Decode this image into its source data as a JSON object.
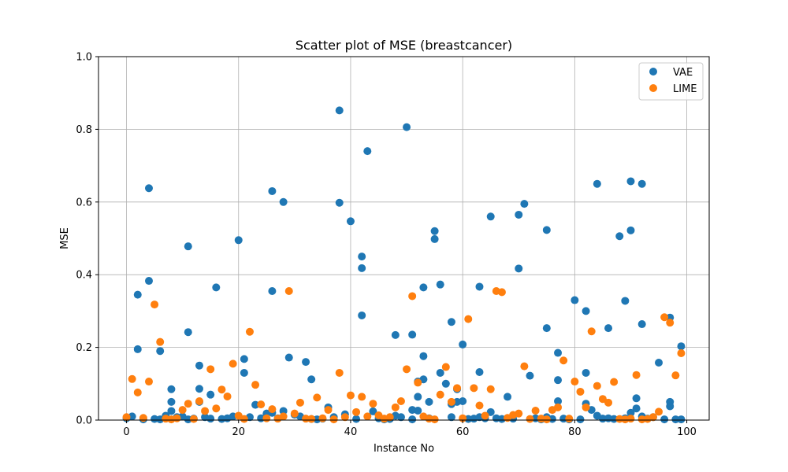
{
  "chart_data": {
    "type": "scatter",
    "title": "Scatter plot of MSE (breastcancer)",
    "xlabel": "Instance No",
    "ylabel": "MSE",
    "xlim": [
      -5,
      104
    ],
    "ylim": [
      0,
      1.0
    ],
    "xticks": [
      0,
      20,
      40,
      60,
      80,
      100
    ],
    "yticks": [
      0.0,
      0.2,
      0.4,
      0.6,
      0.8,
      1.0
    ],
    "xtick_labels": [
      "0",
      "20",
      "40",
      "60",
      "80",
      "100"
    ],
    "ytick_labels": [
      "0.0",
      "0.2",
      "0.4",
      "0.6",
      "0.8",
      "1.0"
    ],
    "grid": true,
    "legend_position": "top-right",
    "series": [
      {
        "name": "VAE",
        "color": "#1f77b4",
        "points": [
          [
            0,
            0.005
          ],
          [
            1,
            0.01
          ],
          [
            2,
            0.195
          ],
          [
            2,
            0.345
          ],
          [
            3,
            0.002
          ],
          [
            4,
            0.383
          ],
          [
            4,
            0.638
          ],
          [
            5,
            0.003
          ],
          [
            6,
            0.19
          ],
          [
            6,
            0.002
          ],
          [
            7,
            0.012
          ],
          [
            8,
            0.085
          ],
          [
            8,
            0.05
          ],
          [
            8,
            0.025
          ],
          [
            9,
            0.008
          ],
          [
            10,
            0.01
          ],
          [
            11,
            0.478
          ],
          [
            11,
            0.242
          ],
          [
            11,
            0.002
          ],
          [
            12,
            0.004
          ],
          [
            13,
            0.15
          ],
          [
            13,
            0.086
          ],
          [
            13,
            0.05
          ],
          [
            14,
            0.008
          ],
          [
            15,
            0.07
          ],
          [
            15,
            0.004
          ],
          [
            16,
            0.365
          ],
          [
            17,
            0.003
          ],
          [
            18,
            0.005
          ],
          [
            19,
            0.01
          ],
          [
            20,
            0.495
          ],
          [
            21,
            0.168
          ],
          [
            21,
            0.13
          ],
          [
            22,
            0.008
          ],
          [
            23,
            0.042
          ],
          [
            24,
            0.005
          ],
          [
            25,
            0.018
          ],
          [
            26,
            0.63
          ],
          [
            26,
            0.355
          ],
          [
            26,
            0.02
          ],
          [
            27,
            0.005
          ],
          [
            28,
            0.6
          ],
          [
            28,
            0.025
          ],
          [
            29,
            0.172
          ],
          [
            30,
            0.015
          ],
          [
            31,
            0.01
          ],
          [
            32,
            0.16
          ],
          [
            33,
            0.112
          ],
          [
            33,
            0.003
          ],
          [
            34,
            0.002
          ],
          [
            35,
            0.004
          ],
          [
            36,
            0.035
          ],
          [
            37,
            0.008
          ],
          [
            38,
            0.852
          ],
          [
            38,
            0.598
          ],
          [
            39,
            0.016
          ],
          [
            40,
            0.547
          ],
          [
            41,
            0.003
          ],
          [
            42,
            0.45
          ],
          [
            42,
            0.418
          ],
          [
            42,
            0.288
          ],
          [
            43,
            0.74
          ],
          [
            44,
            0.024
          ],
          [
            45,
            0.005
          ],
          [
            46,
            0.002
          ],
          [
            47,
            0.003
          ],
          [
            48,
            0.234
          ],
          [
            48,
            0.012
          ],
          [
            49,
            0.008
          ],
          [
            50,
            0.806
          ],
          [
            51,
            0.235
          ],
          [
            51,
            0.028
          ],
          [
            51,
            0.002
          ],
          [
            52,
            0.106
          ],
          [
            52,
            0.064
          ],
          [
            52,
            0.026
          ],
          [
            53,
            0.365
          ],
          [
            53,
            0.176
          ],
          [
            53,
            0.112
          ],
          [
            54,
            0.05
          ],
          [
            54,
            0.005
          ],
          [
            55,
            0.52
          ],
          [
            55,
            0.498
          ],
          [
            56,
            0.373
          ],
          [
            56,
            0.13
          ],
          [
            57,
            0.1
          ],
          [
            58,
            0.27
          ],
          [
            58,
            0.044
          ],
          [
            58,
            0.008
          ],
          [
            59,
            0.085
          ],
          [
            59,
            0.05
          ],
          [
            60,
            0.208
          ],
          [
            60,
            0.052
          ],
          [
            61,
            0.003
          ],
          [
            62,
            0.004
          ],
          [
            63,
            0.367
          ],
          [
            63,
            0.132
          ],
          [
            63,
            0.008
          ],
          [
            64,
            0.005
          ],
          [
            65,
            0.56
          ],
          [
            65,
            0.022
          ],
          [
            66,
            0.005
          ],
          [
            67,
            0.003
          ],
          [
            68,
            0.064
          ],
          [
            69,
            0.004
          ],
          [
            70,
            0.565
          ],
          [
            70,
            0.417
          ],
          [
            71,
            0.595
          ],
          [
            72,
            0.122
          ],
          [
            73,
            0.005
          ],
          [
            74,
            0.002
          ],
          [
            75,
            0.523
          ],
          [
            75,
            0.253
          ],
          [
            75,
            0.008
          ],
          [
            76,
            0.003
          ],
          [
            77,
            0.185
          ],
          [
            77,
            0.11
          ],
          [
            77,
            0.052
          ],
          [
            78,
            0.004
          ],
          [
            79,
            0.002
          ],
          [
            80,
            0.33
          ],
          [
            81,
            0.002
          ],
          [
            82,
            0.3
          ],
          [
            82,
            0.13
          ],
          [
            82,
            0.045
          ],
          [
            83,
            0.028
          ],
          [
            84,
            0.65
          ],
          [
            84,
            0.012
          ],
          [
            85,
            0.004
          ],
          [
            86,
            0.253
          ],
          [
            86,
            0.005
          ],
          [
            87,
            0.003
          ],
          [
            88,
            0.506
          ],
          [
            89,
            0.328
          ],
          [
            89,
            0.005
          ],
          [
            90,
            0.657
          ],
          [
            90,
            0.522
          ],
          [
            90,
            0.02
          ],
          [
            91,
            0.06
          ],
          [
            91,
            0.032
          ],
          [
            92,
            0.65
          ],
          [
            92,
            0.264
          ],
          [
            92,
            0.01
          ],
          [
            93,
            0.004
          ],
          [
            94,
            0.008
          ],
          [
            95,
            0.158
          ],
          [
            96,
            0.002
          ],
          [
            97,
            0.282
          ],
          [
            97,
            0.05
          ],
          [
            97,
            0.038
          ],
          [
            98,
            0.002
          ],
          [
            99,
            0.203
          ],
          [
            99,
            0.002
          ]
        ]
      },
      {
        "name": "LIME",
        "color": "#ff7f0e",
        "points": [
          [
            0,
            0.008
          ],
          [
            1,
            0.113
          ],
          [
            2,
            0.076
          ],
          [
            3,
            0.006
          ],
          [
            4,
            0.106
          ],
          [
            5,
            0.318
          ],
          [
            6,
            0.215
          ],
          [
            7,
            0.004
          ],
          [
            8,
            0.002
          ],
          [
            9,
            0.005
          ],
          [
            10,
            0.028
          ],
          [
            11,
            0.045
          ],
          [
            12,
            0.003
          ],
          [
            13,
            0.052
          ],
          [
            14,
            0.025
          ],
          [
            15,
            0.14
          ],
          [
            16,
            0.032
          ],
          [
            17,
            0.084
          ],
          [
            18,
            0.065
          ],
          [
            19,
            0.155
          ],
          [
            20,
            0.012
          ],
          [
            21,
            0.003
          ],
          [
            22,
            0.243
          ],
          [
            23,
            0.097
          ],
          [
            24,
            0.043
          ],
          [
            25,
            0.005
          ],
          [
            26,
            0.03
          ],
          [
            27,
            0.004
          ],
          [
            28,
            0.01
          ],
          [
            29,
            0.355
          ],
          [
            30,
            0.018
          ],
          [
            31,
            0.048
          ],
          [
            32,
            0.004
          ],
          [
            33,
            0.003
          ],
          [
            34,
            0.062
          ],
          [
            35,
            0.005
          ],
          [
            36,
            0.028
          ],
          [
            37,
            0.002
          ],
          [
            38,
            0.13
          ],
          [
            39,
            0.008
          ],
          [
            40,
            0.068
          ],
          [
            41,
            0.022
          ],
          [
            42,
            0.064
          ],
          [
            43,
            0.01
          ],
          [
            44,
            0.045
          ],
          [
            45,
            0.013
          ],
          [
            46,
            0.004
          ],
          [
            47,
            0.008
          ],
          [
            48,
            0.035
          ],
          [
            49,
            0.052
          ],
          [
            50,
            0.14
          ],
          [
            51,
            0.341
          ],
          [
            52,
            0.103
          ],
          [
            53,
            0.01
          ],
          [
            54,
            0.004
          ],
          [
            55,
            0.002
          ],
          [
            56,
            0.07
          ],
          [
            57,
            0.146
          ],
          [
            58,
            0.05
          ],
          [
            59,
            0.088
          ],
          [
            60,
            0.005
          ],
          [
            61,
            0.278
          ],
          [
            62,
            0.088
          ],
          [
            63,
            0.04
          ],
          [
            64,
            0.012
          ],
          [
            65,
            0.085
          ],
          [
            66,
            0.355
          ],
          [
            67,
            0.352
          ],
          [
            68,
            0.006
          ],
          [
            69,
            0.014
          ],
          [
            70,
            0.018
          ],
          [
            71,
            0.148
          ],
          [
            72,
            0.003
          ],
          [
            73,
            0.026
          ],
          [
            74,
            0.004
          ],
          [
            75,
            0.002
          ],
          [
            76,
            0.028
          ],
          [
            77,
            0.035
          ],
          [
            78,
            0.164
          ],
          [
            79,
            0.004
          ],
          [
            80,
            0.106
          ],
          [
            81,
            0.078
          ],
          [
            82,
            0.035
          ],
          [
            83,
            0.244
          ],
          [
            84,
            0.094
          ],
          [
            85,
            0.058
          ],
          [
            86,
            0.048
          ],
          [
            87,
            0.105
          ],
          [
            88,
            0.003
          ],
          [
            89,
            0.002
          ],
          [
            90,
            0.004
          ],
          [
            91,
            0.124
          ],
          [
            92,
            0.002
          ],
          [
            93,
            0.003
          ],
          [
            94,
            0.008
          ],
          [
            95,
            0.023
          ],
          [
            96,
            0.283
          ],
          [
            97,
            0.268
          ],
          [
            98,
            0.123
          ],
          [
            99,
            0.184
          ]
        ]
      }
    ]
  }
}
